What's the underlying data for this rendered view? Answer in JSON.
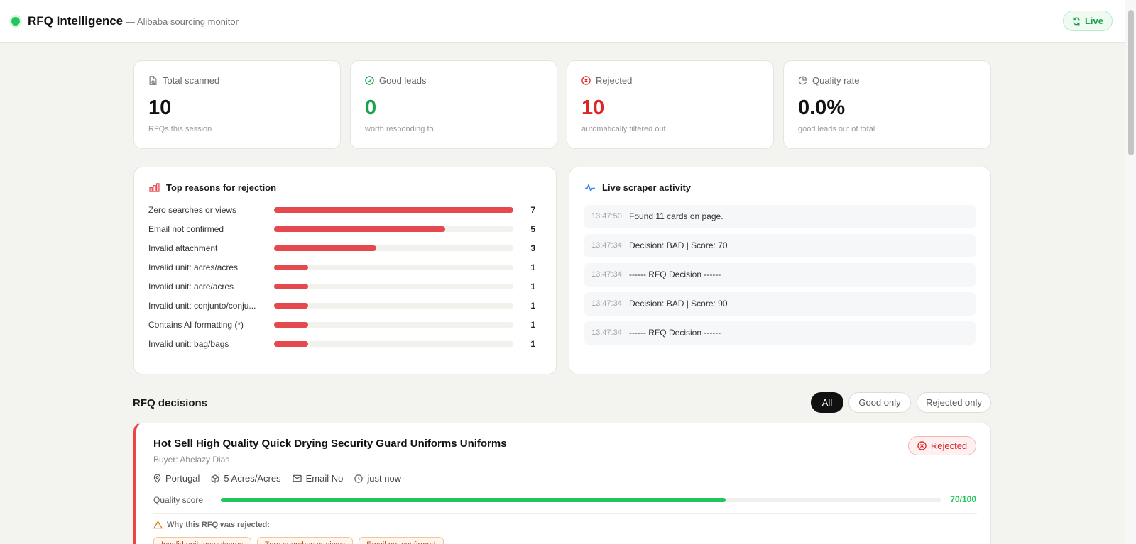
{
  "header": {
    "title": "RFQ Intelligence",
    "subtitle": "— Alibaba sourcing monitor",
    "live_label": "Live"
  },
  "stats": [
    {
      "label": "Total scanned",
      "value": "10",
      "note": "RFQs this session",
      "icon": "document-search-icon",
      "color": "#111111"
    },
    {
      "label": "Good leads",
      "value": "0",
      "note": "worth responding to",
      "icon": "check-circle-icon",
      "color": "#16a34a"
    },
    {
      "label": "Rejected",
      "value": "10",
      "note": "automatically filtered out",
      "icon": "x-circle-icon",
      "color": "#dc2626"
    },
    {
      "label": "Quality rate",
      "value": "0.0%",
      "note": "good leads out of total",
      "icon": "pie-chart-icon",
      "color": "#111111"
    }
  ],
  "reasons": {
    "title": "Top reasons for rejection",
    "max": 7,
    "items": [
      {
        "label": "Zero searches or views",
        "count": 7
      },
      {
        "label": "Email not confirmed",
        "count": 5
      },
      {
        "label": "Invalid attachment",
        "count": 3
      },
      {
        "label": "Invalid unit: acres/acres",
        "count": 1
      },
      {
        "label": "Invalid unit: acre/acres",
        "count": 1
      },
      {
        "label": "Invalid unit: conjunto/conju...",
        "count": 1
      },
      {
        "label": "Contains AI formatting (*)",
        "count": 1
      },
      {
        "label": "Invalid unit: bag/bags",
        "count": 1
      }
    ]
  },
  "activity": {
    "title": "Live scraper activity",
    "items": [
      {
        "time": "13:47:50",
        "message": "Found 11 cards on page."
      },
      {
        "time": "13:47:34",
        "message": "Decision: BAD | Score: 70"
      },
      {
        "time": "13:47:34",
        "message": "------ RFQ Decision ------"
      },
      {
        "time": "13:47:34",
        "message": "Decision: BAD | Score: 90"
      },
      {
        "time": "13:47:34",
        "message": "------ RFQ Decision ------"
      }
    ]
  },
  "decisions": {
    "title": "RFQ decisions",
    "filters": [
      "All",
      "Good only",
      "Rejected only"
    ],
    "active_filter": "All",
    "rfq": {
      "title": "Hot Sell High Quality Quick Drying Security Guard Uniforms Uniforms",
      "buyer": "Buyer: Abelazy Dias",
      "status": "Rejected",
      "country": "Portugal",
      "quantity": "5 Acres/Acres",
      "email": "Email No",
      "time": "just now",
      "score_label": "Quality score",
      "score": 70,
      "score_text": "70/100",
      "why_label": "Why this RFQ was rejected:",
      "tags": [
        "Invalid unit: acres/acres",
        "Zero searches or views",
        "Email not confirmed"
      ]
    }
  }
}
